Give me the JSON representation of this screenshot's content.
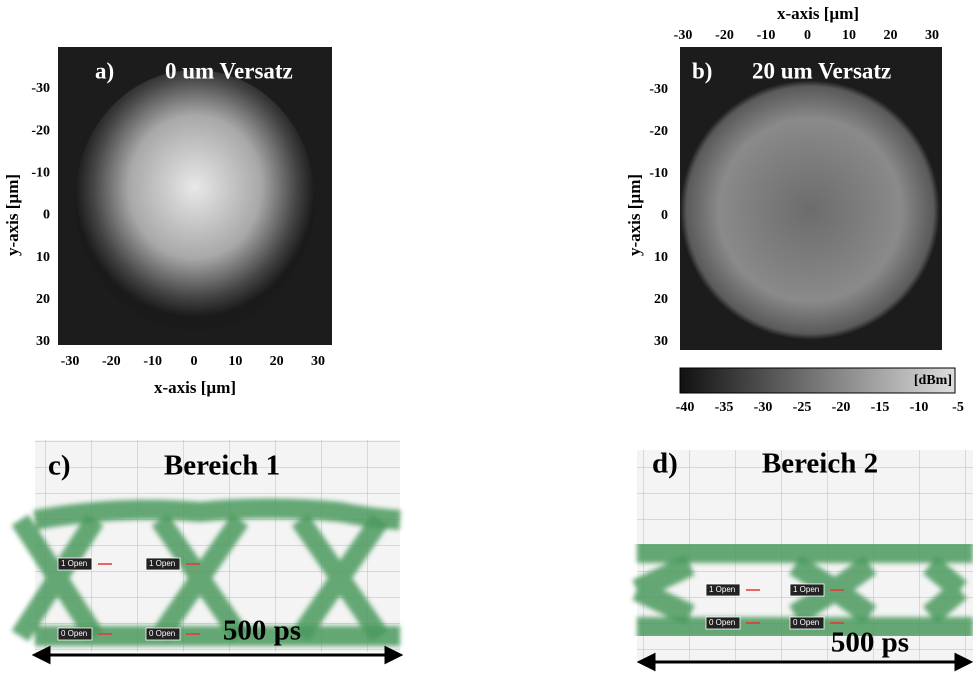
{
  "panels": [
    {
      "label": "a)",
      "title": "0 um Versatz",
      "y_label": "y-axis [µm]",
      "y_ticks": [
        -30,
        -20,
        -10,
        0,
        10,
        20,
        30
      ],
      "x_label": "x-axis [µm]",
      "x_ticks": [
        -30,
        -20,
        -10,
        0,
        10,
        20,
        30
      ]
    },
    {
      "label": "b)",
      "title": "20 um Versatz",
      "y_label": "y-axis [µm]",
      "y_ticks": [
        -30,
        -20,
        -10,
        0,
        10,
        20,
        30
      ],
      "x_label": "x-axis [µm]",
      "x_ticks": [
        -30,
        -20,
        -10,
        0,
        10,
        20,
        30
      ],
      "colorbar": {
        "unit": "[dBm]",
        "ticks": [
          -40,
          -35,
          -30,
          -25,
          -20,
          -15,
          -10,
          -5
        ]
      }
    },
    {
      "label": "c)",
      "title": "Bereich 1",
      "markers": [
        "1 Open",
        "1 Open",
        "0 Open",
        "0 Open"
      ],
      "span": "500 ps"
    },
    {
      "label": "d)",
      "title": "Bereich 2",
      "markers": [
        "1 Open",
        "1 Open",
        "0 Open",
        "0 Open"
      ],
      "span": "500 ps"
    }
  ]
}
